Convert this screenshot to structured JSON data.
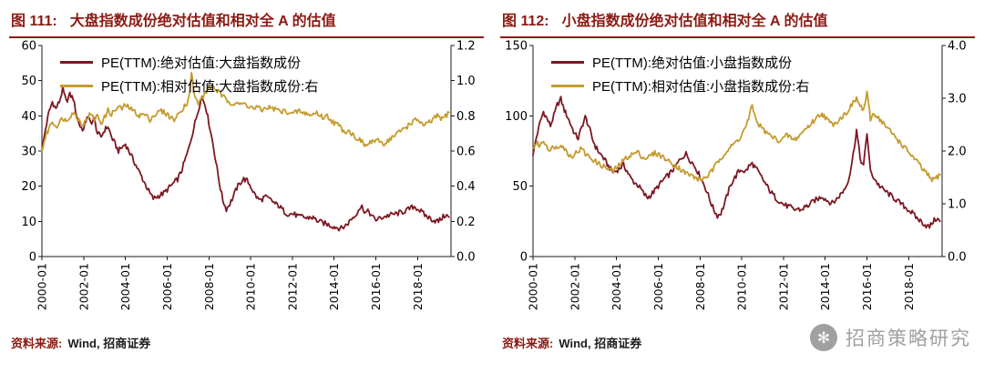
{
  "colors": {
    "title_maroon": "#8B1A12",
    "axis": "#1a1a1a",
    "line_dark_red": "#7C1823",
    "line_gold": "#C59B2E",
    "watermark_gray": "#97989A"
  },
  "figures": [
    {
      "fig_label": "图 111:",
      "source_label": "资料来源:",
      "source_text": "Wind, 招商证券"
    },
    {
      "fig_label": "图 112:",
      "source_label": "资料来源:",
      "source_text": "Wind, 招商证券"
    }
  ],
  "watermark": {
    "text": "招商策略研究"
  },
  "chart_data": [
    {
      "type": "line",
      "title": "大盘指数成份绝对估值和相对全 A 的估值",
      "x_ticks": [
        "2000-01",
        "2002-01",
        "2004-01",
        "2006-01",
        "2008-01",
        "2010-01",
        "2012-01",
        "2014-01",
        "2016-01",
        "2018-01"
      ],
      "x_range": [
        2000,
        2019.6
      ],
      "left_axis": {
        "min": 0,
        "max": 60,
        "step": 10,
        "ticks": [
          "0",
          "10",
          "20",
          "30",
          "40",
          "50",
          "60"
        ]
      },
      "right_axis": {
        "min": 0,
        "max": 1.2,
        "step": 0.2,
        "ticks": [
          "0.0",
          "0.2",
          "0.4",
          "0.6",
          "0.8",
          "1.0",
          "1.2"
        ]
      },
      "series": [
        {
          "name": "PE(TTM):绝对估值:大盘指数成份",
          "axis": "left",
          "color": "#7C1823",
          "x_start": 2000,
          "x_step": 0.1667,
          "values": [
            30,
            36,
            41,
            44,
            42,
            44,
            47.5,
            44,
            46,
            45,
            40,
            37,
            36,
            40,
            38,
            39,
            35,
            34,
            36,
            37,
            34,
            32,
            30,
            31,
            32,
            30,
            28,
            26,
            24,
            22,
            20,
            18,
            16.5,
            17,
            17.5,
            18,
            19,
            20,
            21,
            22,
            24,
            27,
            30,
            34,
            38,
            42,
            45.5,
            43,
            38,
            33,
            27,
            21,
            16,
            13.5,
            15,
            17,
            19.5,
            21,
            22,
            21.5,
            20,
            18,
            16.5,
            16,
            17,
            16.5,
            16,
            15,
            14.5,
            13.5,
            12.5,
            12,
            12.2,
            11.8,
            11.2,
            11.5,
            10.8,
            11.2,
            11,
            10.3,
            9.8,
            9.5,
            9.2,
            8.8,
            8.5,
            8.2,
            8,
            8.6,
            9.5,
            10.8,
            11.5,
            13.5,
            14.2,
            12.5,
            12.8,
            11.2,
            10.5,
            10.8,
            11.2,
            11.5,
            11.8,
            12,
            12.2,
            12.5,
            12.8,
            13.2,
            13.8,
            14.2,
            13.6,
            12.8,
            11.8,
            11.2,
            10.6,
            10.2,
            10,
            11,
            11.8,
            11.2
          ]
        },
        {
          "name": "PE(TTM):相对估值:大盘指数成份:右",
          "axis": "right",
          "color": "#C59B2E",
          "x_start": 2000,
          "x_step": 0.1667,
          "values": [
            0.6,
            0.68,
            0.73,
            0.77,
            0.74,
            0.76,
            0.79,
            0.77,
            0.8,
            0.82,
            0.79,
            0.77,
            0.75,
            0.79,
            0.81,
            0.78,
            0.8,
            0.76,
            0.79,
            0.83,
            0.81,
            0.83,
            0.85,
            0.84,
            0.86,
            0.85,
            0.83,
            0.82,
            0.8,
            0.81,
            0.8,
            0.78,
            0.8,
            0.81,
            0.83,
            0.82,
            0.81,
            0.79,
            0.78,
            0.8,
            0.83,
            0.86,
            0.88,
            1.04,
            0.9,
            0.87,
            0.9,
            0.93,
            0.96,
            0.97,
            0.95,
            0.93,
            0.91,
            0.89,
            0.88,
            0.87,
            0.88,
            0.86,
            0.87,
            0.86,
            0.85,
            0.84,
            0.85,
            0.83,
            0.84,
            0.85,
            0.84,
            0.84,
            0.83,
            0.82,
            0.83,
            0.82,
            0.81,
            0.82,
            0.83,
            0.81,
            0.82,
            0.8,
            0.81,
            0.82,
            0.8,
            0.79,
            0.8,
            0.78,
            0.76,
            0.75,
            0.73,
            0.71,
            0.72,
            0.7,
            0.68,
            0.67,
            0.65,
            0.63,
            0.64,
            0.66,
            0.65,
            0.66,
            0.64,
            0.65,
            0.67,
            0.68,
            0.7,
            0.71,
            0.73,
            0.74,
            0.76,
            0.77,
            0.78,
            0.76,
            0.74,
            0.76,
            0.77,
            0.79,
            0.8,
            0.78,
            0.8,
            0.82
          ]
        }
      ]
    },
    {
      "type": "line",
      "title": "小盘指数成份绝对估值和相对全 A 的估值",
      "x_ticks": [
        "2000-01",
        "2002-01",
        "2004-01",
        "2006-01",
        "2008-01",
        "2010-01",
        "2012-01",
        "2014-01",
        "2016-01",
        "2018-01"
      ],
      "x_range": [
        2000,
        2019.6
      ],
      "left_axis": {
        "min": 0,
        "max": 150,
        "step": 50,
        "ticks": [
          "0",
          "50",
          "100",
          "150"
        ]
      },
      "right_axis": {
        "min": 0,
        "max": 4,
        "step": 1,
        "ticks": [
          "0.0",
          "1.0",
          "2.0",
          "3.0",
          "4.0"
        ]
      },
      "series": [
        {
          "name": "PE(TTM):绝对估值:小盘指数成份",
          "axis": "left",
          "color": "#7C1823",
          "x_start": 2000,
          "x_step": 0.1667,
          "values": [
            72,
            85,
            95,
            103,
            98,
            93,
            100,
            108,
            112,
            104,
            99,
            93,
            87,
            84,
            92,
            99,
            93,
            84,
            78,
            74,
            71,
            67,
            63,
            60,
            61,
            63,
            65,
            61,
            56,
            53,
            51,
            48,
            44,
            42,
            44,
            47,
            50,
            53,
            56,
            58,
            61,
            64,
            68,
            71,
            73,
            69,
            66,
            62,
            57,
            52,
            46,
            39,
            33,
            29,
            31,
            37,
            45,
            52,
            56,
            60,
            62,
            60,
            64,
            66,
            63,
            59,
            55,
            51,
            47,
            44,
            41,
            39,
            37,
            36,
            35,
            33,
            34,
            33,
            35,
            36,
            38,
            40,
            41,
            43,
            41,
            39,
            38,
            40,
            43,
            46,
            50,
            58,
            72,
            90,
            70,
            64,
            88,
            60,
            56,
            52,
            49,
            47,
            45,
            43,
            41,
            39,
            37,
            35,
            33,
            31,
            28,
            26,
            24,
            22,
            21,
            25,
            27,
            25
          ]
        },
        {
          "name": "PE(TTM):相对估值:小盘指数成份:右",
          "axis": "right",
          "color": "#C59B2E",
          "x_start": 2000,
          "x_step": 0.1667,
          "values": [
            2.05,
            2.15,
            2.1,
            2.2,
            2.1,
            2.0,
            2.1,
            2.05,
            2.15,
            2.05,
            1.95,
            1.9,
            1.95,
            2.0,
            2.05,
            1.95,
            1.9,
            1.85,
            1.8,
            1.75,
            1.72,
            1.68,
            1.65,
            1.62,
            1.68,
            1.75,
            1.82,
            1.88,
            1.92,
            1.95,
            1.98,
            1.92,
            1.86,
            1.88,
            1.92,
            1.96,
            1.94,
            1.9,
            1.86,
            1.8,
            1.76,
            1.72,
            1.68,
            1.62,
            1.58,
            1.55,
            1.52,
            1.48,
            1.45,
            1.48,
            1.52,
            1.58,
            1.68,
            1.78,
            1.88,
            1.95,
            2.02,
            2.08,
            2.15,
            2.22,
            2.3,
            2.45,
            2.6,
            2.88,
            2.6,
            2.5,
            2.42,
            2.35,
            2.3,
            2.26,
            2.22,
            2.2,
            2.24,
            2.3,
            2.26,
            2.2,
            2.26,
            2.32,
            2.4,
            2.46,
            2.52,
            2.6,
            2.66,
            2.72,
            2.64,
            2.56,
            2.5,
            2.55,
            2.6,
            2.66,
            2.72,
            2.82,
            2.9,
            3.0,
            2.85,
            2.78,
            3.08,
            2.6,
            2.72,
            2.65,
            2.58,
            2.5,
            2.42,
            2.35,
            2.28,
            2.2,
            2.12,
            2.05,
            1.98,
            1.9,
            1.82,
            1.75,
            1.65,
            1.58,
            1.5,
            1.45,
            1.5,
            1.55
          ]
        }
      ]
    }
  ]
}
